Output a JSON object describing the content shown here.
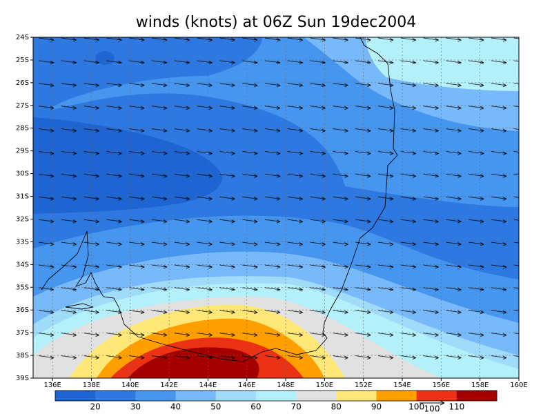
{
  "chart_data": {
    "type": "contour-map",
    "title": "winds (knots) at 06Z Sun 19dec2004",
    "xlim": [
      135,
      160
    ],
    "ylim": [
      -39,
      -24
    ],
    "xticks": [
      {
        "value": 136,
        "label": "136E"
      },
      {
        "value": 138,
        "label": "138E"
      },
      {
        "value": 140,
        "label": "140E"
      },
      {
        "value": 142,
        "label": "142E"
      },
      {
        "value": 144,
        "label": "144E"
      },
      {
        "value": 146,
        "label": "146E"
      },
      {
        "value": 148,
        "label": "148E"
      },
      {
        "value": 150,
        "label": "150E"
      },
      {
        "value": 152,
        "label": "152E"
      },
      {
        "value": 154,
        "label": "154E"
      },
      {
        "value": 156,
        "label": "156E"
      },
      {
        "value": 158,
        "label": "158E"
      },
      {
        "value": 160,
        "label": "160E"
      }
    ],
    "yticks": [
      {
        "value": -24,
        "label": "24S"
      },
      {
        "value": -25,
        "label": "25S"
      },
      {
        "value": -26,
        "label": "26S"
      },
      {
        "value": -27,
        "label": "27S"
      },
      {
        "value": -28,
        "label": "28S"
      },
      {
        "value": -29,
        "label": "29S"
      },
      {
        "value": -30,
        "label": "30S"
      },
      {
        "value": -31,
        "label": "31S"
      },
      {
        "value": -32,
        "label": "32S"
      },
      {
        "value": -33,
        "label": "33S"
      },
      {
        "value": -34,
        "label": "34S"
      },
      {
        "value": -35,
        "label": "35S"
      },
      {
        "value": -36,
        "label": "36S"
      },
      {
        "value": -37,
        "label": "37S"
      },
      {
        "value": -38,
        "label": "38S"
      },
      {
        "value": -39,
        "label": "39S"
      }
    ],
    "grid": true,
    "colorbar": {
      "levels": [
        20,
        30,
        40,
        50,
        60,
        70,
        80,
        90,
        100,
        110
      ],
      "colors": [
        "#1e64d2",
        "#2d78e1",
        "#4696f0",
        "#78b9fa",
        "#a0dcfa",
        "#b4f0fa",
        "#e1e1e1",
        "#ffe878",
        "#ffa000",
        "#eb3214",
        "#a50000"
      ]
    },
    "vector_scale": 100
  }
}
